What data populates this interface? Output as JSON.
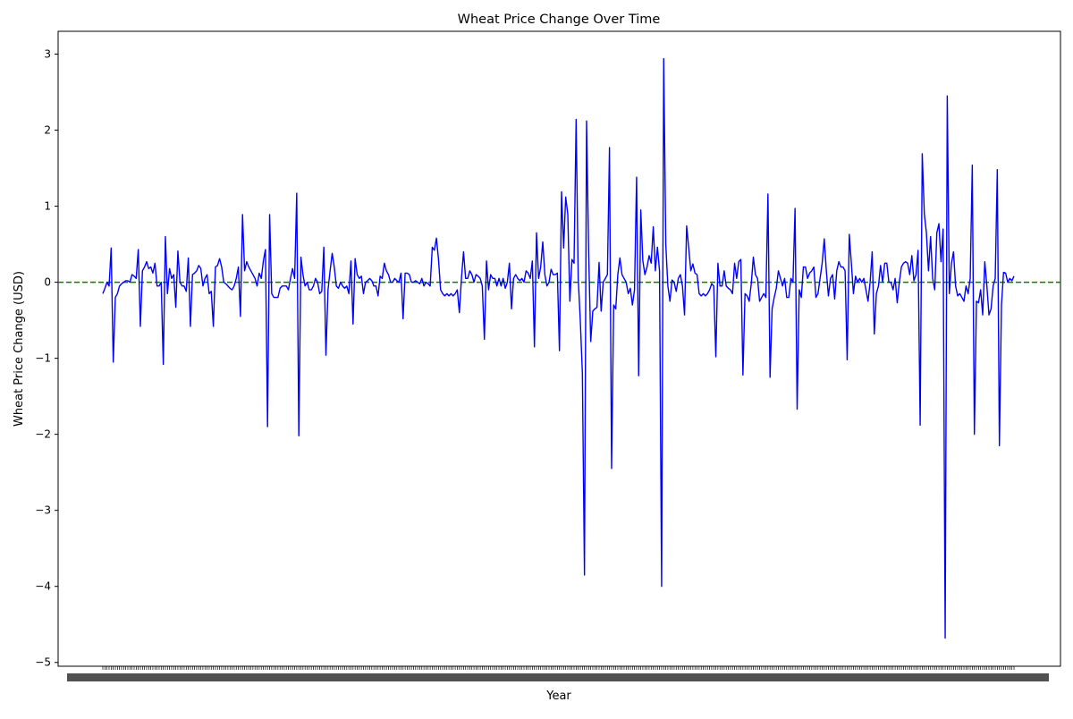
{
  "chart_data": {
    "type": "line",
    "title": "Wheat Price Change Over Time",
    "xlabel": "Year",
    "ylabel": "Wheat Price Change (USD)",
    "ylim": [
      -5.05,
      3.3
    ],
    "yticks": [
      -5,
      -4,
      -3,
      -2,
      -1,
      0,
      1,
      2,
      3
    ],
    "ytick_labels": [
      "−5",
      "−4",
      "−3",
      "−2",
      "−1",
      "0",
      "1",
      "2",
      "3"
    ],
    "grid": false,
    "legend": "none",
    "reference_line": {
      "y": 0,
      "color": "#008000",
      "style": "dashed"
    },
    "series": [
      {
        "color": "#0000ff",
        "values": [
          -0.15,
          -0.08,
          0.0,
          -0.05,
          0.45,
          -1.05,
          -0.2,
          -0.15,
          -0.05,
          -0.02,
          0.0,
          0.02,
          0.02,
          0.0,
          0.1,
          0.08,
          0.05,
          0.43,
          -0.58,
          0.15,
          0.2,
          0.27,
          0.18,
          0.2,
          0.12,
          0.25,
          -0.05,
          -0.05,
          0.0,
          -1.08,
          0.6,
          -0.15,
          0.18,
          0.05,
          0.1,
          -0.33,
          0.41,
          0.0,
          -0.05,
          -0.05,
          -0.12,
          0.32,
          -0.58,
          0.1,
          0.12,
          0.15,
          0.22,
          0.18,
          -0.05,
          0.05,
          0.1,
          -0.15,
          -0.12,
          -0.58,
          0.2,
          0.22,
          0.31,
          0.2,
          0.0,
          -0.02,
          -0.05,
          -0.08,
          -0.1,
          -0.05,
          0.05,
          0.2,
          -0.45,
          0.89,
          0.15,
          0.27,
          0.2,
          0.15,
          0.1,
          0.05,
          -0.05,
          0.12,
          0.05,
          0.28,
          0.43,
          -1.9,
          0.89,
          -0.15,
          -0.2,
          -0.2,
          -0.2,
          -0.08,
          -0.05,
          -0.05,
          -0.05,
          -0.1,
          0.05,
          0.18,
          0.05,
          1.17,
          -2.02,
          0.33,
          0.1,
          -0.05,
          0.0,
          -0.1,
          -0.1,
          -0.05,
          0.05,
          0.0,
          -0.15,
          -0.12,
          0.46,
          -0.96,
          -0.1,
          0.15,
          0.38,
          0.2,
          -0.05,
          -0.08,
          0.0,
          -0.05,
          -0.08,
          -0.05,
          -0.15,
          0.28,
          -0.55,
          0.31,
          0.1,
          0.05,
          0.08,
          -0.15,
          0.0,
          0.02,
          0.05,
          0.02,
          -0.05,
          -0.05,
          -0.18,
          0.08,
          0.05,
          0.25,
          0.15,
          0.1,
          0.0,
          0.0,
          0.05,
          0.02,
          0.0,
          0.12,
          -0.48,
          0.12,
          0.12,
          0.1,
          0.0,
          0.0,
          0.02,
          0.0,
          -0.02,
          0.05,
          -0.05,
          0.0,
          -0.02,
          -0.05,
          0.46,
          0.42,
          0.58,
          0.3,
          -0.1,
          -0.15,
          -0.18,
          -0.15,
          -0.18,
          -0.15,
          -0.18,
          -0.15,
          -0.1,
          -0.4,
          0.05,
          0.4,
          0.05,
          0.05,
          0.15,
          0.1,
          0.0,
          0.1,
          0.08,
          0.05,
          -0.05,
          -0.75,
          0.28,
          -0.1,
          0.1,
          0.05,
          0.05,
          -0.05,
          0.05,
          -0.05,
          0.05,
          -0.08,
          0.0,
          0.25,
          -0.35,
          0.05,
          0.1,
          0.05,
          0.02,
          0.05,
          0.0,
          0.15,
          0.12,
          0.05,
          0.28,
          -0.85,
          0.65,
          0.05,
          0.2,
          0.53,
          0.1,
          -0.05,
          0.0,
          0.17,
          0.1,
          0.1,
          0.12,
          -0.9,
          1.19,
          0.45,
          1.12,
          0.9,
          -0.25,
          0.3,
          0.25,
          2.14,
          0.05,
          -0.5,
          -1.2,
          -3.85,
          2.12,
          0.4,
          -0.78,
          -0.38,
          -0.35,
          -0.33,
          0.26,
          -0.38,
          0.0,
          0.05,
          0.1,
          1.77,
          -2.45,
          -0.3,
          -0.35,
          0.1,
          0.32,
          0.1,
          0.05,
          0.0,
          -0.15,
          -0.08,
          -0.3,
          -0.1,
          1.38,
          -1.23,
          0.95,
          0.28,
          0.1,
          0.2,
          0.35,
          0.25,
          0.73,
          0.15,
          0.46,
          0.15,
          -4.0,
          2.94,
          0.5,
          -0.05,
          -0.25,
          0.03,
          0.0,
          -0.12,
          0.05,
          0.1,
          -0.05,
          -0.43,
          0.74,
          0.45,
          0.15,
          0.24,
          0.12,
          0.1,
          -0.15,
          -0.18,
          -0.15,
          -0.18,
          -0.15,
          -0.1,
          -0.02,
          -0.05,
          -0.98,
          0.25,
          -0.05,
          -0.05,
          0.15,
          -0.05,
          -0.08,
          -0.1,
          -0.15,
          0.25,
          0.05,
          0.27,
          0.3,
          -1.22,
          -0.15,
          -0.18,
          -0.25,
          -0.02,
          0.33,
          0.1,
          0.05,
          -0.25,
          -0.2,
          -0.15,
          -0.2,
          1.16,
          -1.25,
          -0.35,
          -0.2,
          -0.08,
          0.15,
          0.05,
          -0.05,
          0.05,
          -0.2,
          -0.2,
          0.05,
          0.0,
          0.97,
          -1.67,
          -0.1,
          -0.2,
          0.2,
          0.2,
          0.05,
          0.12,
          0.15,
          0.2,
          -0.2,
          -0.15,
          0.05,
          0.25,
          0.57,
          0.15,
          -0.18,
          0.05,
          0.1,
          -0.22,
          0.15,
          0.27,
          0.2,
          0.2,
          0.15,
          -1.02,
          0.63,
          0.25,
          -0.15,
          0.08,
          0.0,
          0.05,
          0.0,
          0.05,
          -0.1,
          -0.25,
          0.0,
          0.4,
          -0.68,
          -0.15,
          -0.05,
          0.22,
          0.0,
          0.25,
          0.25,
          0.0,
          0.0,
          -0.1,
          0.05,
          -0.27,
          0.0,
          0.2,
          0.25,
          0.27,
          0.25,
          0.1,
          0.35,
          0.02,
          0.1,
          0.42,
          -1.88,
          1.69,
          0.9,
          0.65,
          0.15,
          0.6,
          0.05,
          -0.1,
          0.65,
          0.77,
          0.27,
          0.7,
          -4.68,
          2.45,
          -0.15,
          0.25,
          0.4,
          -0.05,
          -0.18,
          -0.15,
          -0.2,
          -0.25,
          -0.05,
          -0.15,
          0.05,
          1.54,
          -2.0,
          -0.25,
          -0.27,
          -0.1,
          -0.43,
          0.27,
          -0.05,
          -0.43,
          -0.35,
          -0.05,
          0.05,
          1.48,
          -2.15,
          -0.3,
          0.13,
          0.12,
          0.0,
          0.05,
          0.02,
          0.08
        ]
      }
    ]
  }
}
